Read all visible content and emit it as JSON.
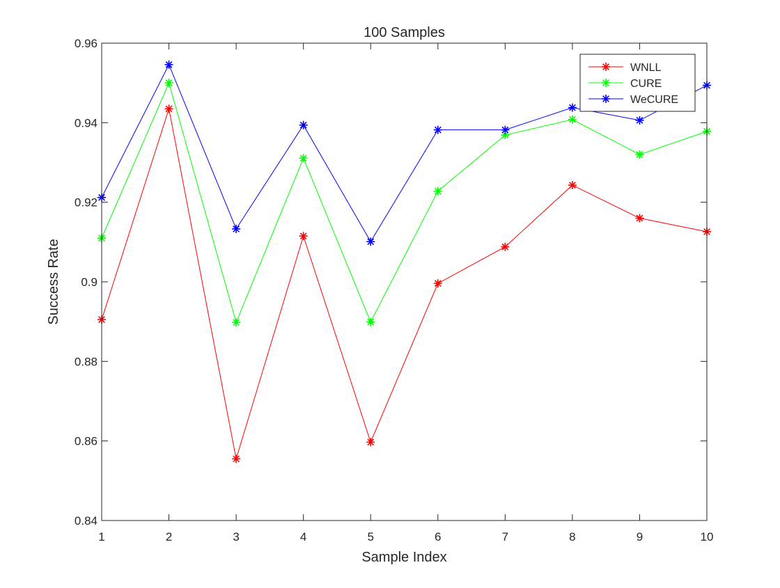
{
  "chart_data": {
    "type": "line",
    "title": "100 Samples",
    "xlabel": "Sample Index",
    "ylabel": "Success Rate",
    "xlim": [
      1,
      10
    ],
    "ylim": [
      0.84,
      0.96
    ],
    "x": [
      1,
      2,
      3,
      4,
      5,
      6,
      7,
      8,
      9,
      10
    ],
    "xticks": [
      "1",
      "2",
      "3",
      "4",
      "5",
      "6",
      "7",
      "8",
      "9",
      "10"
    ],
    "yticks": [
      "0.84",
      "0.86",
      "0.88",
      "0.9",
      "0.92",
      "0.94",
      "0.96"
    ],
    "grid": false,
    "legend_position": "top-right",
    "marker": "asterisk",
    "series": [
      {
        "name": "WNLL",
        "color": "#ff0000",
        "values": [
          0.8905,
          0.9435,
          0.8555,
          0.9115,
          0.8597,
          0.8996,
          0.9088,
          0.9243,
          0.916,
          0.9126
        ]
      },
      {
        "name": "CURE",
        "color": "#00ff00",
        "values": [
          0.911,
          0.95,
          0.8898,
          0.9311,
          0.8899,
          0.9228,
          0.9369,
          0.9408,
          0.932,
          0.9378
        ]
      },
      {
        "name": "WeCURE",
        "color": "#0000ff",
        "values": [
          0.9212,
          0.9546,
          0.9133,
          0.9394,
          0.9101,
          0.9382,
          0.9382,
          0.9438,
          0.9406,
          0.9494
        ]
      }
    ]
  }
}
